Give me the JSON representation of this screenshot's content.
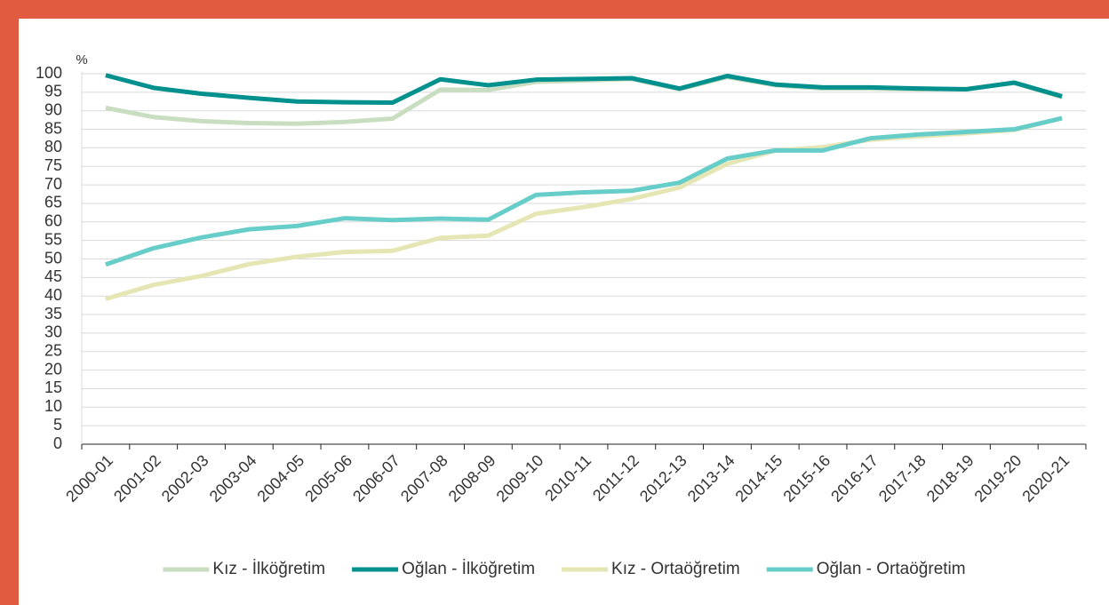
{
  "chart_data": {
    "type": "line",
    "y_label": "%",
    "categories": [
      "2000-01",
      "2001-02",
      "2002-03",
      "2003-04",
      "2004-05",
      "2005-06",
      "2006-07",
      "2007-08",
      "2008-09",
      "2009-10",
      "2010-11",
      "2011-12",
      "2012-13",
      "2013-14",
      "2014-15",
      "2015-16",
      "2016-17",
      "2017-18",
      "2018-19",
      "2019-20",
      "2020-21"
    ],
    "series": [
      {
        "name": "Kız - İlköğretim",
        "color": "#c9ddc0",
        "values": [
          90.8,
          88.3,
          87.2,
          86.7,
          86.5,
          87.0,
          87.9,
          95.7,
          95.6,
          97.8,
          98.2,
          98.6,
          95.8,
          99.1,
          96.9,
          96.0,
          96.0,
          95.8,
          95.9,
          97.5,
          93.7
        ]
      },
      {
        "name": "Oğlan - İlköğretim",
        "color": "#00908d",
        "values": [
          99.6,
          96.2,
          94.6,
          93.5,
          92.5,
          92.3,
          92.2,
          98.5,
          96.9,
          98.4,
          98.6,
          98.8,
          96.0,
          99.4,
          97.1,
          96.3,
          96.3,
          96.0,
          95.8,
          97.6,
          93.9
        ]
      },
      {
        "name": "Kız - Ortaöğretim",
        "color": "#e6e6b5",
        "values": [
          39.2,
          43.0,
          45.4,
          48.6,
          50.6,
          51.9,
          52.2,
          55.7,
          56.3,
          62.2,
          64.0,
          66.2,
          69.3,
          75.7,
          79.2,
          80.2,
          82.2,
          83.1,
          83.9,
          84.8,
          88.0
        ]
      },
      {
        "name": "Oğlan - Ortaöğretim",
        "color": "#66cdc9",
        "values": [
          48.5,
          52.9,
          55.8,
          58.0,
          58.9,
          61.0,
          60.5,
          60.9,
          60.6,
          67.3,
          68.0,
          68.4,
          70.6,
          77.1,
          79.3,
          79.3,
          82.6,
          83.6,
          84.3,
          85.0,
          88.0
        ]
      }
    ],
    "ylim": [
      0,
      100
    ],
    "yticks": [
      0,
      5,
      10,
      15,
      20,
      25,
      30,
      35,
      40,
      45,
      50,
      55,
      60,
      65,
      70,
      75,
      80,
      85,
      90,
      95,
      100
    ],
    "grid": true
  }
}
